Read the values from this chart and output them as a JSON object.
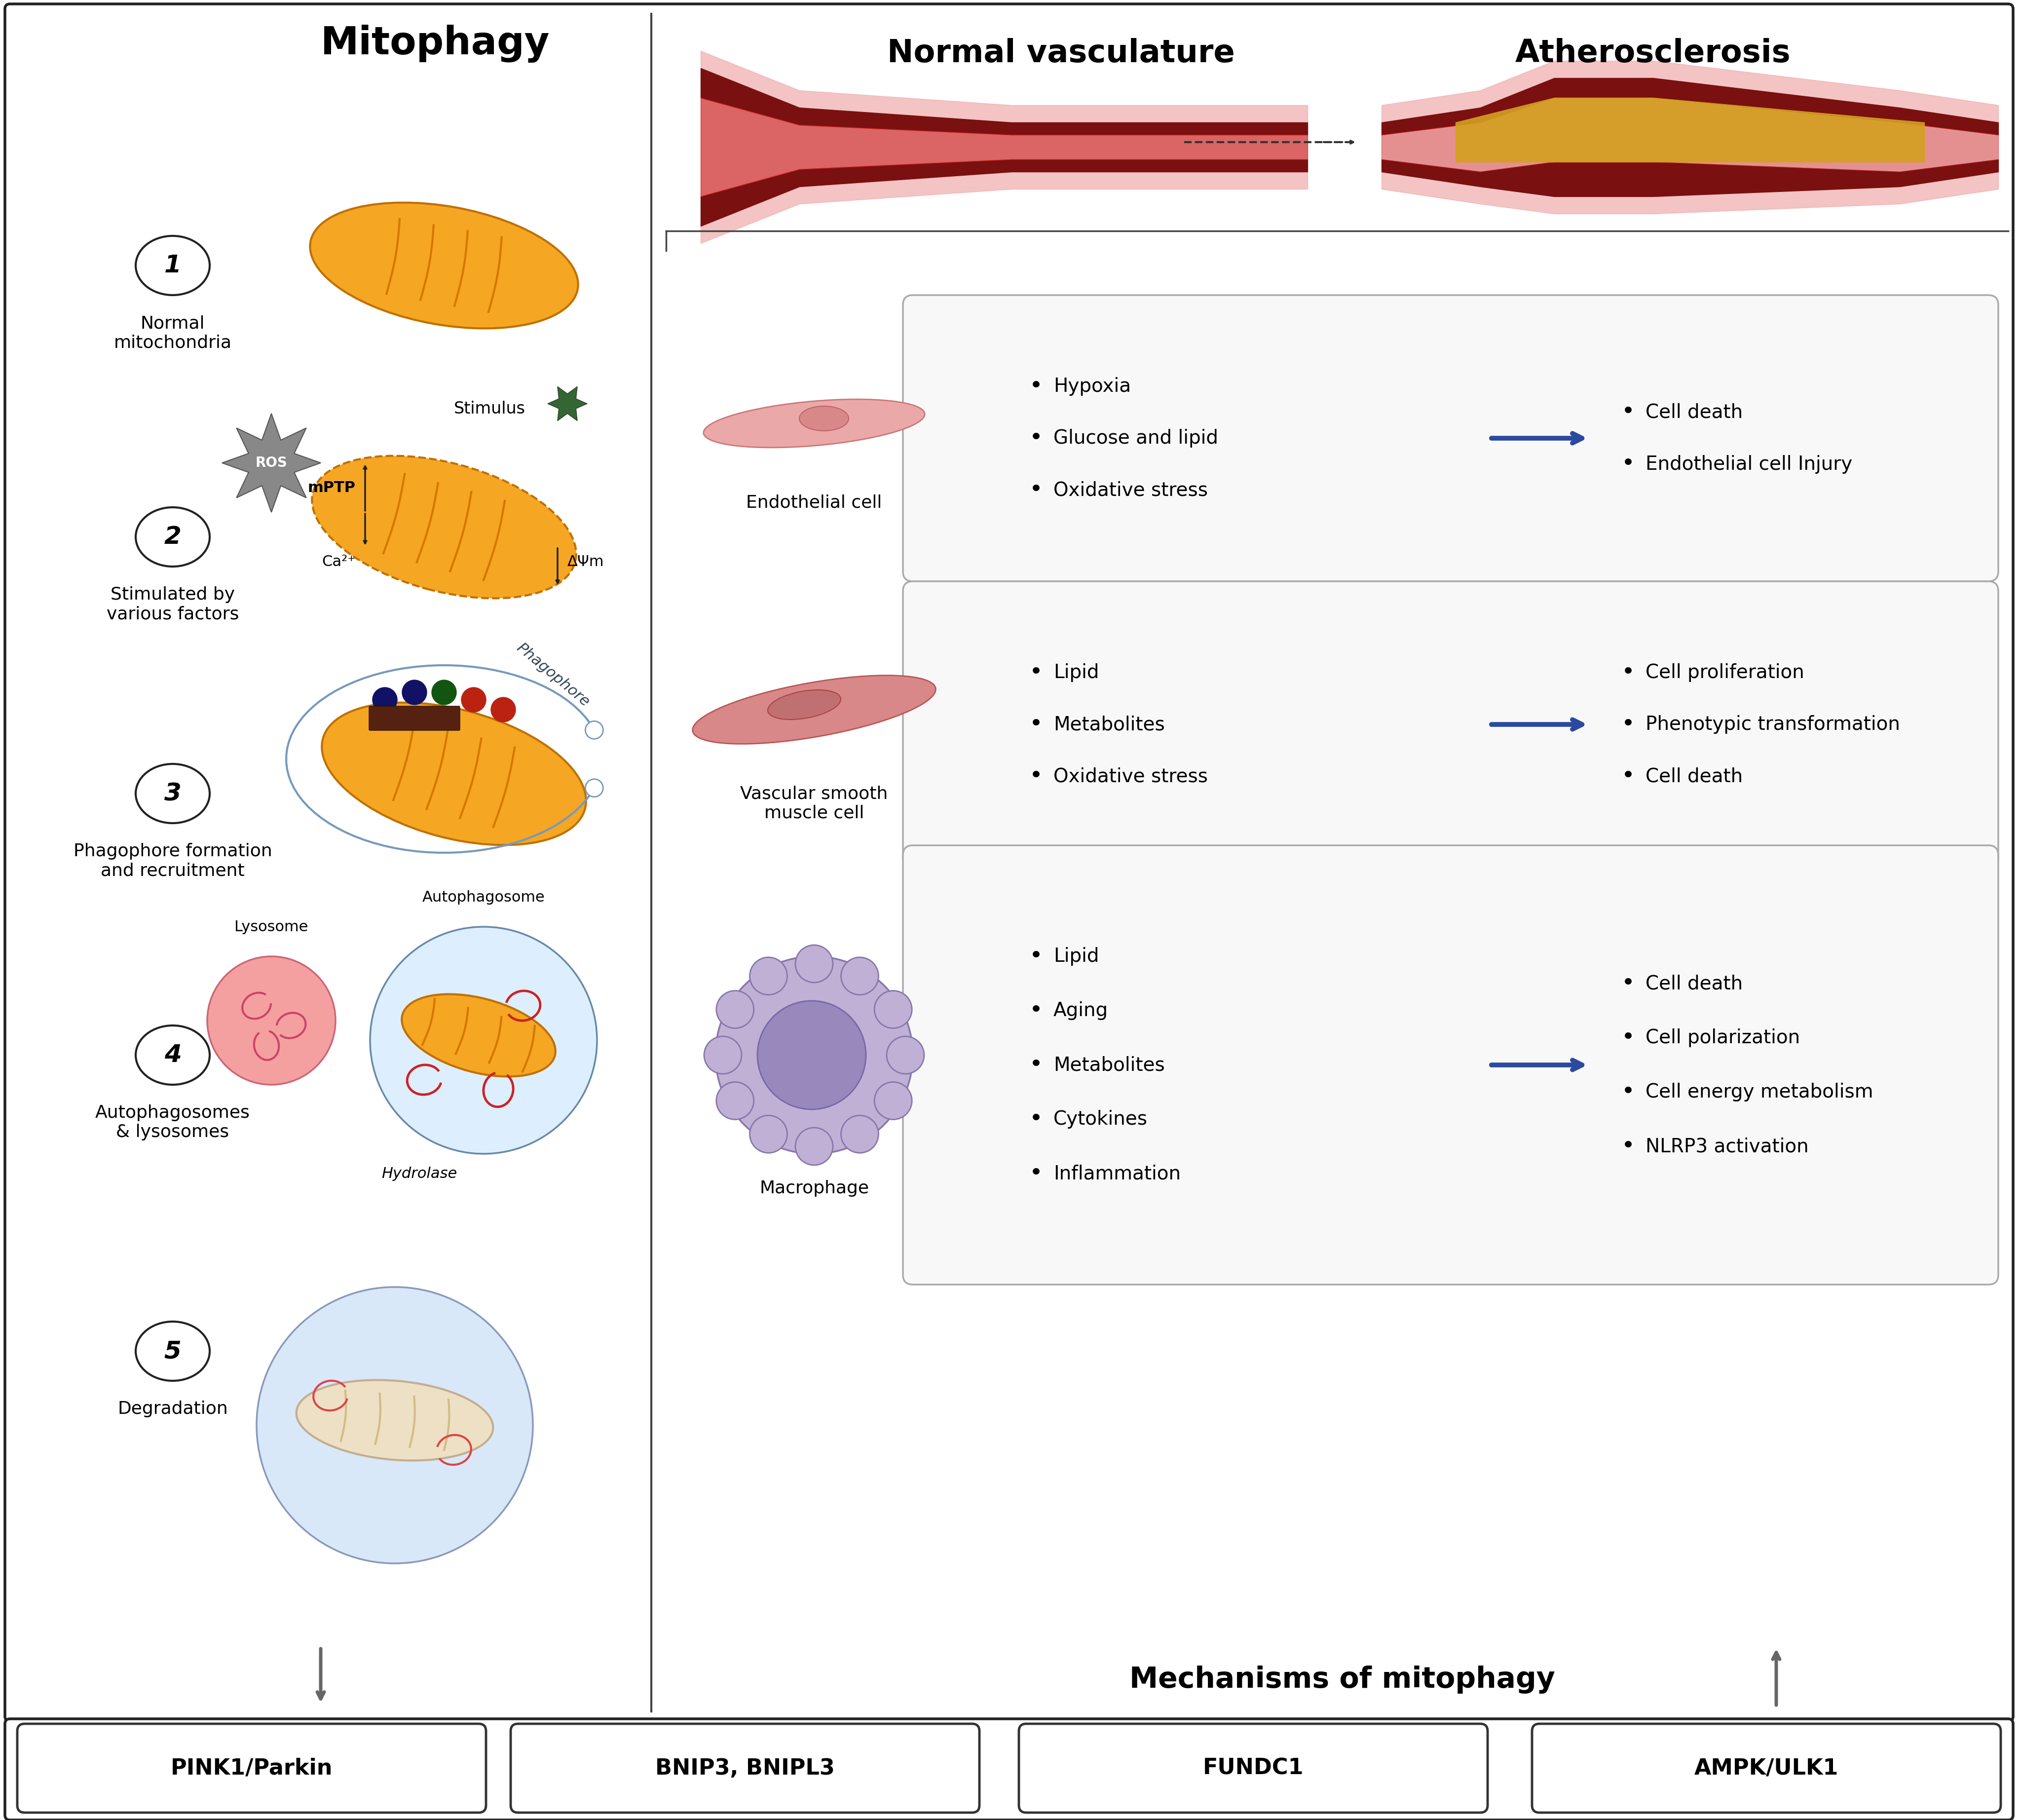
{
  "title_left": "Mitophagy",
  "title_right_normal": "Normal vasculature",
  "title_right_athero": "Atherosclerosis",
  "bottom_title": "Mechanisms of mitophagy",
  "step_labels": [
    "Normal\nmitochondria",
    "Stimulated by\nvarious factors",
    "Phagophore formation\nand recruitment",
    "Autophagosomes\n& lysosomes",
    "Degradation"
  ],
  "step_numbers": [
    "1",
    "2",
    "3",
    "4",
    "5"
  ],
  "bottom_boxes": [
    "PINK1/Parkin",
    "BNIP3, BNIPL3",
    "FUNDC1",
    "AMPK/ULK1"
  ],
  "cell_labels": [
    "Endothelial cell",
    "Vascular smooth\nmuscle cell",
    "Macrophage"
  ],
  "left_bullet_lists": [
    [
      "Hypoxia",
      "Glucose and lipid",
      "Oxidative stress"
    ],
    [
      "Lipid",
      "Metabolites",
      "Oxidative stress"
    ],
    [
      "Lipid",
      "Aging",
      "Metabolites",
      "Cytokines",
      "Inflammation"
    ]
  ],
  "right_bullet_lists": [
    [
      "Cell death",
      "Endothelial cell Injury"
    ],
    [
      "Cell proliferation",
      "Phenotypic transformation",
      "Cell death"
    ],
    [
      "Cell death",
      "Cell polarization",
      "Cell energy metabolism",
      "NLRP3 activation"
    ]
  ],
  "mito_color": "#F5A623",
  "mito_edge_color": "#E07B00",
  "mito_stripe_color": "#D47800",
  "bg_color": "#FFFFFF",
  "border_color": "#333333",
  "arrow_color": "#2B4A9F",
  "lyso_color": "#F5A0A0",
  "lyso_edge": "#CC6677",
  "auto_color": "#DDEEFF",
  "auto_edge": "#6688AA",
  "degrad_circle_color": "#D8E8F8",
  "degrad_edge": "#8899BB"
}
